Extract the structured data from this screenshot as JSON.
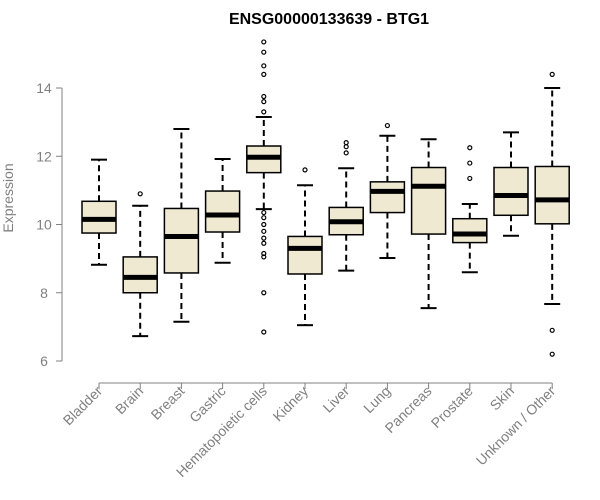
{
  "chart_data": {
    "type": "boxplot",
    "title": "ENSG00000133639 - BTG1",
    "ylabel": "Expression",
    "xlabel": "",
    "ylim": [
      6,
      14.8
    ],
    "yticks": [
      6,
      8,
      10,
      12,
      14
    ],
    "box_fill": "#EFE9D2",
    "box_stroke": "#000000",
    "axis_color": "#808080",
    "categories": [
      "Bladder",
      "Brain",
      "Breast",
      "Gastric",
      "Hematopoietic cells",
      "Kidney",
      "Liver",
      "Lung",
      "Pancreas",
      "Prostate",
      "Skin",
      "Unknown / Other"
    ],
    "boxes": [
      {
        "whisker_low": 8.82,
        "q1": 9.75,
        "median": 10.15,
        "q3": 10.68,
        "whisker_high": 11.9,
        "outliers": []
      },
      {
        "whisker_low": 6.73,
        "q1": 8.0,
        "median": 8.45,
        "q3": 9.05,
        "whisker_high": 10.55,
        "outliers": [
          10.9
        ]
      },
      {
        "whisker_low": 7.15,
        "q1": 8.58,
        "median": 9.65,
        "q3": 10.47,
        "whisker_high": 12.8,
        "outliers": []
      },
      {
        "whisker_low": 8.88,
        "q1": 9.78,
        "median": 10.28,
        "q3": 10.98,
        "whisker_high": 11.92,
        "outliers": []
      },
      {
        "whisker_low": 10.45,
        "q1": 11.52,
        "median": 11.97,
        "q3": 12.3,
        "whisker_high": 13.15,
        "outliers": [
          15.35,
          15.05,
          14.65,
          14.4,
          13.75,
          13.6,
          13.3,
          10.35,
          10.2,
          10.0,
          9.8,
          9.6,
          9.45,
          9.15,
          9.05,
          8.0,
          6.85
        ]
      },
      {
        "whisker_low": 7.05,
        "q1": 8.55,
        "median": 9.3,
        "q3": 9.65,
        "whisker_high": 11.15,
        "outliers": [
          11.6
        ]
      },
      {
        "whisker_low": 8.65,
        "q1": 9.7,
        "median": 10.08,
        "q3": 10.5,
        "whisker_high": 11.65,
        "outliers": [
          12.4,
          12.28,
          12.1
        ]
      },
      {
        "whisker_low": 9.02,
        "q1": 10.35,
        "median": 10.97,
        "q3": 11.25,
        "whisker_high": 12.6,
        "outliers": [
          12.9
        ]
      },
      {
        "whisker_low": 7.55,
        "q1": 9.72,
        "median": 11.12,
        "q3": 11.67,
        "whisker_high": 12.5,
        "outliers": []
      },
      {
        "whisker_low": 8.6,
        "q1": 9.47,
        "median": 9.72,
        "q3": 10.17,
        "whisker_high": 10.6,
        "outliers": [
          12.25,
          11.8,
          11.35
        ]
      },
      {
        "whisker_low": 9.67,
        "q1": 10.27,
        "median": 10.85,
        "q3": 11.67,
        "whisker_high": 12.7,
        "outliers": []
      },
      {
        "whisker_low": 7.67,
        "q1": 10.02,
        "median": 10.72,
        "q3": 11.7,
        "whisker_high": 14.0,
        "outliers": [
          14.4,
          6.9,
          6.2
        ]
      }
    ]
  }
}
